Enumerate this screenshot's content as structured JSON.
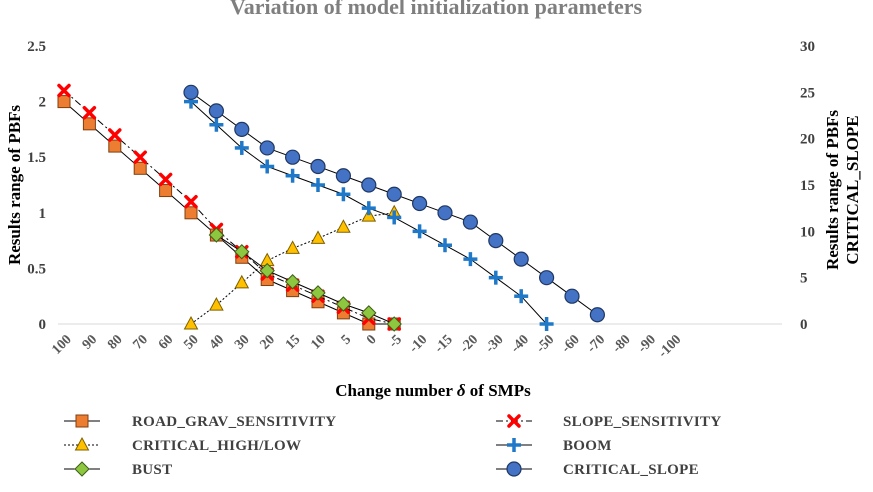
{
  "chart_data": {
    "type": "line",
    "title": "Variation of model initialization parameters",
    "xlabel_parts": [
      "Change number ",
      "δ",
      " of SMPs"
    ],
    "ylabel_left": "Results range of  PBFs",
    "ylabel_right_lines": [
      "Results range of  PBFs",
      "CRITICAL_SLOPE"
    ],
    "categories": [
      "100",
      "90",
      "80",
      "70",
      "60",
      "50",
      "40",
      "30",
      "20",
      "15",
      "10",
      "5",
      "0",
      "-5",
      "-10",
      "-15",
      "-20",
      "-30",
      "-40",
      "-50",
      "-60",
      "-70",
      "-80",
      "-90",
      "-100"
    ],
    "y_left": {
      "min": 0,
      "max": 2.5,
      "ticks": [
        "0",
        "0.5",
        "1",
        "1.5",
        "2",
        "2.5"
      ]
    },
    "y_right": {
      "min": 0,
      "max": 30,
      "ticks": [
        "0",
        "5",
        "10",
        "15",
        "20",
        "25",
        "30"
      ]
    },
    "grid": false,
    "legend_position": "bottom",
    "series": [
      {
        "name": "ROAD_GRAV_SENSITIVITY",
        "axis": "left",
        "marker": "square",
        "color": "#ed7d31",
        "line": "solid",
        "values": [
          2.0,
          1.8,
          1.6,
          1.4,
          1.2,
          1.0,
          0.8,
          0.6,
          0.4,
          0.3,
          0.2,
          0.1,
          0.0,
          0.0,
          null,
          null,
          null,
          null,
          null,
          null,
          null,
          null,
          null,
          null,
          null
        ]
      },
      {
        "name": "SLOPE_SENSITIVITY",
        "axis": "left",
        "marker": "x",
        "color": "#ff0000",
        "line": "dashdot",
        "values": [
          2.1,
          1.9,
          1.7,
          1.5,
          1.3,
          1.1,
          0.85,
          0.65,
          0.45,
          0.35,
          0.25,
          0.15,
          0.05,
          0.0,
          null,
          null,
          null,
          null,
          null,
          null,
          null,
          null,
          null,
          null,
          null
        ]
      },
      {
        "name": "CRITICAL_HIGH/LOW",
        "axis": "left",
        "marker": "triangle",
        "color": "#ffc000",
        "line": "dotted",
        "values": [
          null,
          null,
          null,
          null,
          null,
          0.0,
          0.17,
          0.37,
          0.57,
          0.68,
          0.77,
          0.87,
          0.97,
          1.0,
          null,
          null,
          null,
          null,
          null,
          null,
          null,
          null,
          null,
          null,
          null
        ]
      },
      {
        "name": "BOOM",
        "axis": "right",
        "marker": "plus",
        "color": "#1f78c8",
        "line": "solid",
        "values": [
          null,
          null,
          null,
          null,
          null,
          24,
          21.5,
          19,
          17,
          16,
          15,
          14,
          12.5,
          11.5,
          10,
          8.5,
          7,
          5,
          3,
          0,
          null,
          null,
          null,
          null,
          null
        ]
      },
      {
        "name": "BUST",
        "axis": "left",
        "marker": "diamond",
        "color": "#8dc63f",
        "line": "solid",
        "values": [
          null,
          null,
          null,
          null,
          null,
          null,
          0.8,
          0.65,
          0.48,
          0.38,
          0.28,
          0.18,
          0.1,
          0.0,
          null,
          null,
          null,
          null,
          null,
          null,
          null,
          null,
          null,
          null,
          null
        ]
      },
      {
        "name": "CRITICAL_SLOPE",
        "axis": "right",
        "marker": "circle",
        "color": "#4472c4",
        "line": "solid",
        "values": [
          null,
          null,
          null,
          null,
          null,
          25,
          23,
          21,
          19,
          18,
          17,
          16,
          15,
          14,
          13,
          12,
          11,
          9,
          7,
          5,
          3,
          1,
          null,
          null,
          null
        ]
      }
    ]
  }
}
